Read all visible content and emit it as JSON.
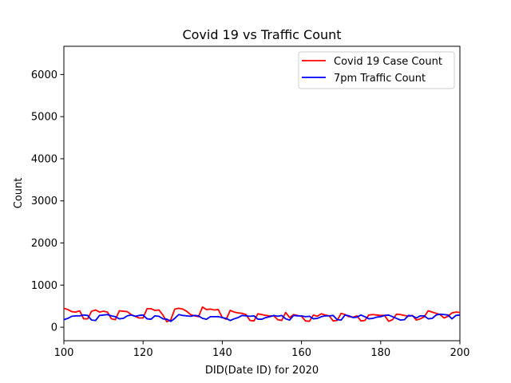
{
  "chart_data": {
    "type": "line",
    "title": "Covid 19 vs Traffic Count",
    "xlabel": "DID(Date ID) for 2020",
    "ylabel": "Count",
    "xlim": [
      100,
      200
    ],
    "ylim": [
      -320,
      6670
    ],
    "xticks": [
      100,
      120,
      140,
      160,
      180,
      200
    ],
    "yticks": [
      0,
      1000,
      2000,
      3000,
      4000,
      5000,
      6000
    ],
    "grid": false,
    "legend_position": "top-right",
    "series": [
      {
        "name": "Covid 19 Case Count",
        "color": "#ff0000",
        "x": [
          100,
          101,
          102,
          103,
          104,
          105,
          106,
          107,
          108,
          109,
          110,
          111,
          112,
          113,
          114,
          115,
          116,
          117,
          118,
          119,
          120,
          121,
          122,
          123,
          124,
          125,
          126,
          127,
          128,
          129,
          130,
          131,
          132,
          133,
          134,
          135,
          136,
          137,
          138,
          139,
          140,
          141,
          142,
          143,
          144,
          145,
          146,
          147,
          148,
          149,
          150,
          151,
          152,
          153,
          154,
          155,
          156,
          157,
          158,
          159,
          160,
          161,
          162,
          163,
          164,
          165,
          166,
          167,
          168,
          169,
          170,
          171,
          172,
          173,
          174,
          175,
          176,
          177,
          178,
          179,
          180,
          181,
          182,
          183,
          184,
          185,
          186,
          187,
          188,
          189,
          190,
          191,
          192,
          193,
          194,
          195,
          196,
          197,
          198,
          199,
          200
        ],
        "y": [
          450,
          420,
          370,
          360,
          390,
          200,
          200,
          380,
          410,
          360,
          380,
          360,
          200,
          180,
          390,
          380,
          370,
          300,
          260,
          220,
          220,
          440,
          440,
          400,
          410,
          290,
          130,
          180,
          430,
          450,
          430,
          380,
          300,
          270,
          250,
          480,
          420,
          430,
          410,
          420,
          230,
          190,
          400,
          360,
          340,
          330,
          300,
          160,
          150,
          320,
          300,
          280,
          270,
          270,
          180,
          160,
          350,
          230,
          300,
          280,
          260,
          150,
          140,
          290,
          260,
          320,
          290,
          270,
          150,
          160,
          330,
          300,
          250,
          240,
          270,
          150,
          160,
          290,
          300,
          290,
          280,
          280,
          140,
          180,
          310,
          300,
          280,
          260,
          280,
          170,
          200,
          250,
          390,
          360,
          330,
          300,
          220,
          260,
          340,
          360,
          350
        ]
      },
      {
        "name": "7pm Traffic Count",
        "color": "#0000ff",
        "x": [
          100,
          101,
          102,
          103,
          104,
          105,
          106,
          107,
          108,
          109,
          110,
          111,
          112,
          113,
          114,
          115,
          116,
          117,
          118,
          119,
          120,
          121,
          122,
          123,
          124,
          125,
          126,
          127,
          128,
          129,
          130,
          131,
          132,
          133,
          134,
          135,
          136,
          137,
          138,
          139,
          140,
          141,
          142,
          143,
          144,
          145,
          146,
          147,
          148,
          149,
          150,
          151,
          152,
          153,
          154,
          155,
          156,
          157,
          158,
          159,
          160,
          161,
          162,
          163,
          164,
          165,
          166,
          167,
          168,
          169,
          170,
          171,
          172,
          173,
          174,
          175,
          176,
          177,
          178,
          179,
          180,
          181,
          182,
          183,
          184,
          185,
          186,
          187,
          188,
          189,
          190,
          191,
          192,
          193,
          194,
          195,
          196,
          197,
          198,
          199,
          200
        ],
        "y": [
          180,
          210,
          260,
          270,
          270,
          290,
          280,
          170,
          160,
          280,
          290,
          300,
          270,
          250,
          200,
          210,
          270,
          290,
          260,
          280,
          290,
          200,
          190,
          270,
          260,
          200,
          190,
          140,
          210,
          300,
          280,
          270,
          260,
          280,
          270,
          210,
          190,
          250,
          250,
          250,
          230,
          210,
          160,
          200,
          230,
          280,
          270,
          260,
          270,
          190,
          190,
          230,
          250,
          280,
          260,
          280,
          200,
          170,
          280,
          270,
          270,
          250,
          260,
          200,
          210,
          250,
          270,
          270,
          280,
          180,
          170,
          290,
          270,
          230,
          240,
          290,
          250,
          200,
          210,
          240,
          250,
          280,
          290,
          250,
          210,
          170,
          180,
          280,
          270,
          220,
          270,
          270,
          200,
          210,
          290,
          310,
          300,
          290,
          200,
          280,
          290
        ]
      }
    ]
  }
}
